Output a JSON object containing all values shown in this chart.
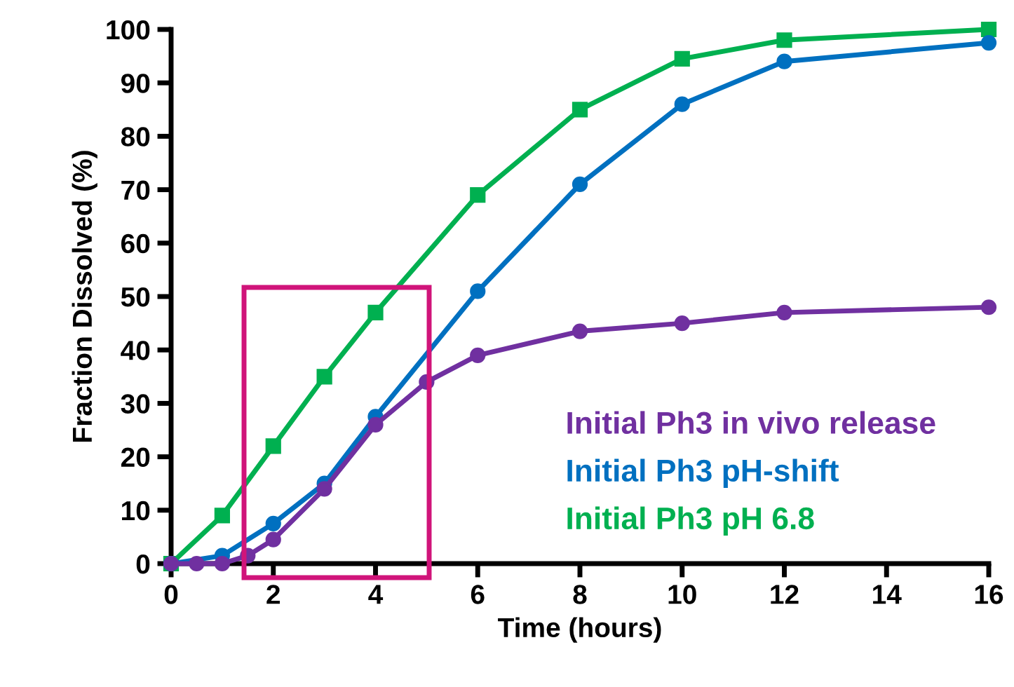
{
  "chart_data": {
    "type": "line",
    "xlabel": "Time (hours)",
    "ylabel": "Fraction Dissolved (%)",
    "xlim": [
      0,
      16
    ],
    "xticks": [
      0,
      2,
      4,
      6,
      8,
      10,
      12,
      14,
      16
    ],
    "ylim": [
      0,
      100
    ],
    "yticks": [
      0,
      10,
      20,
      30,
      40,
      50,
      60,
      70,
      80,
      90,
      100
    ],
    "grid": false,
    "legend": "bottom right",
    "series": [
      {
        "name": "Initial Ph3 in vivo release",
        "color": "#7030a0",
        "marker": "circle",
        "x": [
          0,
          0.5,
          1,
          1.5,
          2,
          3,
          4,
          5,
          6,
          8,
          10,
          12,
          16
        ],
        "values": [
          0,
          0,
          0,
          1.5,
          4.5,
          14,
          26,
          34,
          39,
          43.5,
          45,
          47,
          48
        ]
      },
      {
        "name": "Initial Ph3 pH-shift",
        "color": "#0070c0",
        "marker": "circle",
        "x": [
          0,
          1,
          2,
          3,
          4,
          6,
          8,
          10,
          12,
          16
        ],
        "values": [
          0,
          1.5,
          7.5,
          15,
          27.5,
          51,
          71,
          86,
          94,
          97.5
        ]
      },
      {
        "name": "Initial Ph3 pH 6.8",
        "color": "#00b050",
        "marker": "square",
        "x": [
          0,
          1,
          2,
          3,
          4,
          6,
          8,
          10,
          12,
          16
        ],
        "values": [
          0,
          9,
          22,
          35,
          47,
          69,
          85,
          94.5,
          98,
          100
        ]
      }
    ]
  }
}
